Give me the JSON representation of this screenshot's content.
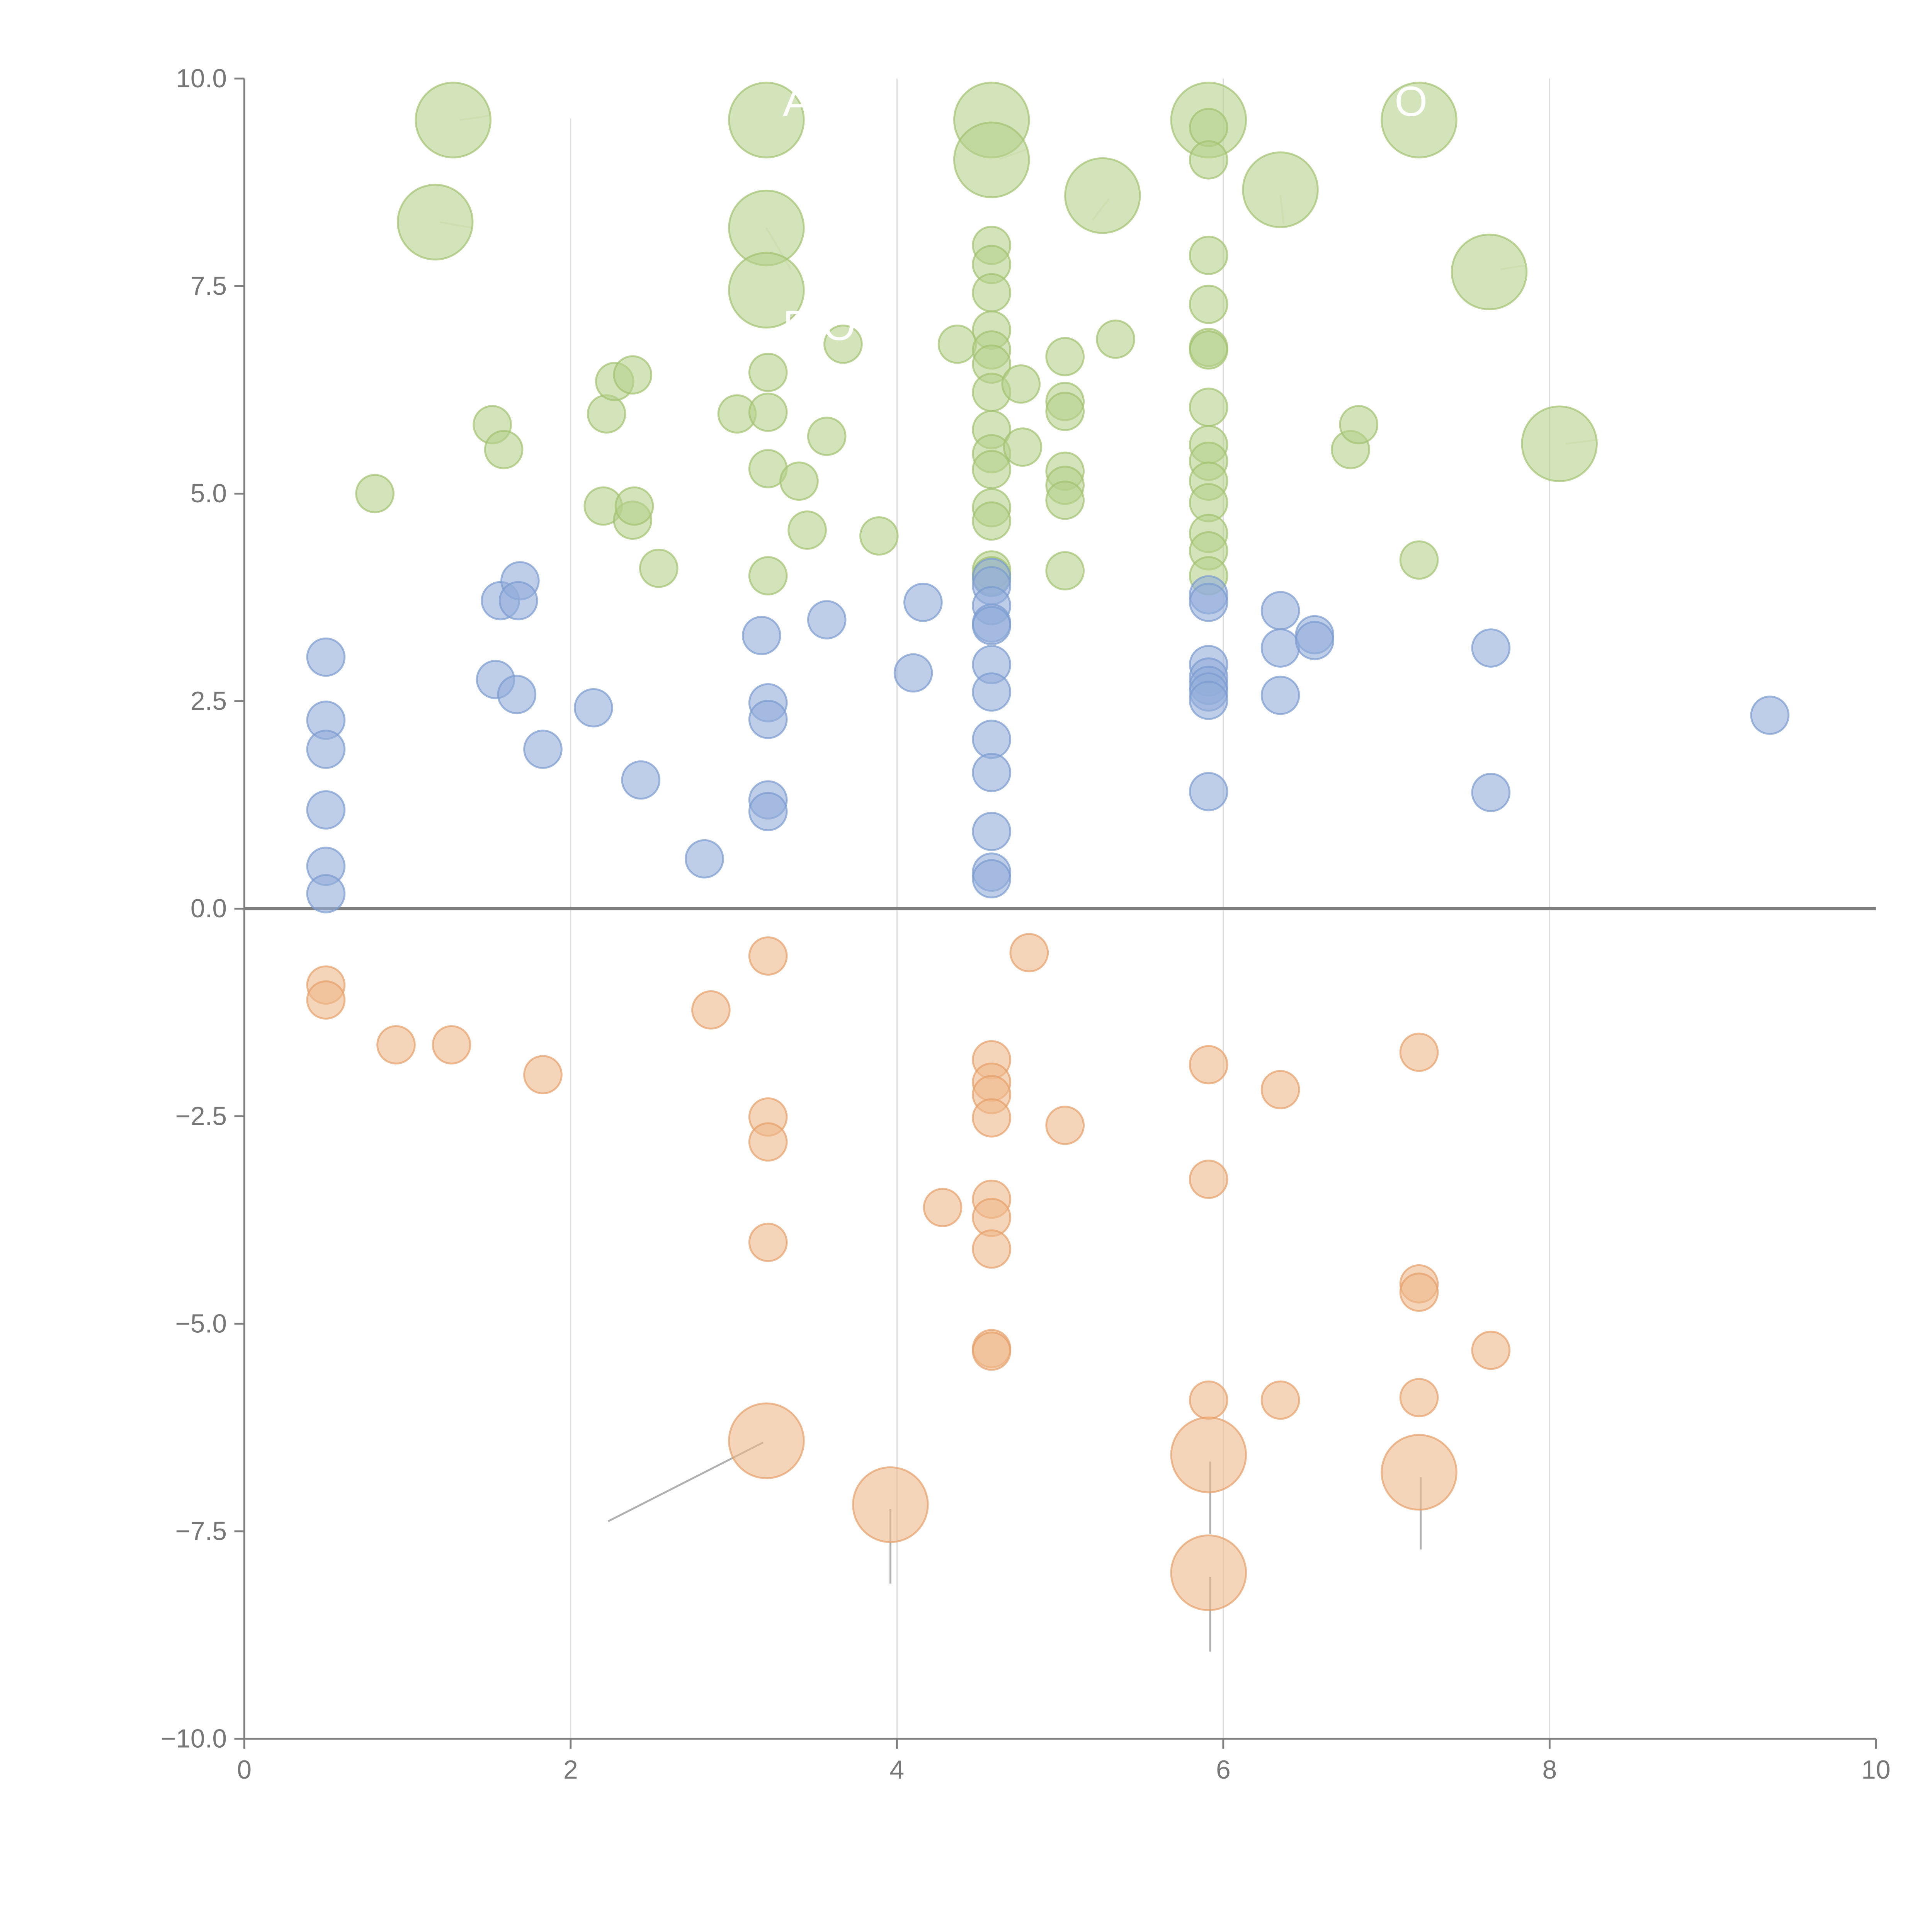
{
  "chart_data": {
    "type": "scatter",
    "title": "",
    "xlabel": "",
    "ylabel": "",
    "xlim": [
      0,
      10
    ],
    "ylim": [
      -10,
      10
    ],
    "x_ticks": [
      "0",
      "2",
      "4",
      "6",
      "8",
      "10"
    ],
    "y_ticks": [
      "−10.0",
      "−7.5",
      "−5.0",
      "−2.5",
      "0.0",
      "2.5",
      "5.0",
      "7.5",
      "10.0"
    ],
    "x_tick_values": [
      0,
      2,
      4,
      6,
      8,
      10
    ],
    "y_tick_values": [
      -10,
      -7.5,
      -5,
      -2.5,
      0,
      2.5,
      5,
      7.5,
      10
    ],
    "grid": "vertical lines at x=2,4,6,8",
    "zero_line": true,
    "legend": "none",
    "point_format": "[x, y, size]",
    "series": [
      {
        "name": "green",
        "color": "#b5d08c",
        "stroke": "#a2c270",
        "points": [
          [
            1.28,
            9.5,
            2
          ],
          [
            1.17,
            8.27,
            2
          ],
          [
            3.2,
            9.5,
            2
          ],
          [
            3.2,
            8.2,
            2
          ],
          [
            3.2,
            7.45,
            2
          ],
          [
            4.58,
            9.5,
            2
          ],
          [
            4.58,
            9.02,
            2
          ],
          [
            5.26,
            8.59,
            2
          ],
          [
            5.91,
            9.5,
            2
          ],
          [
            6.35,
            8.66,
            2
          ],
          [
            7.2,
            9.5,
            2
          ],
          [
            7.63,
            7.67,
            2
          ],
          [
            8.06,
            5.6,
            2
          ],
          [
            0.8,
            5.0,
            1
          ],
          [
            1.52,
            5.83,
            1
          ],
          [
            1.59,
            5.53,
            1
          ],
          [
            2.22,
            5.96,
            1
          ],
          [
            2.27,
            6.35,
            1
          ],
          [
            2.38,
            6.43,
            1
          ],
          [
            2.2,
            4.85,
            1
          ],
          [
            2.38,
            4.68,
            1
          ],
          [
            2.39,
            4.85,
            1
          ],
          [
            2.54,
            4.1,
            1
          ],
          [
            3.02,
            5.96,
            1
          ],
          [
            3.21,
            6.46,
            1
          ],
          [
            3.21,
            5.98,
            1
          ],
          [
            3.21,
            5.3,
            1
          ],
          [
            3.4,
            5.15,
            1
          ],
          [
            3.45,
            4.56,
            1
          ],
          [
            3.21,
            4.01,
            1
          ],
          [
            3.57,
            5.69,
            1
          ],
          [
            3.67,
            6.8,
            1
          ],
          [
            3.89,
            4.49,
            1
          ],
          [
            4.37,
            6.8,
            1
          ],
          [
            4.58,
            7.99,
            1
          ],
          [
            4.58,
            7.76,
            1
          ],
          [
            4.58,
            7.42,
            1
          ],
          [
            4.58,
            6.97,
            1
          ],
          [
            4.58,
            6.73,
            1
          ],
          [
            4.58,
            6.56,
            1
          ],
          [
            4.58,
            6.22,
            1
          ],
          [
            4.58,
            5.77,
            1
          ],
          [
            4.58,
            5.48,
            1
          ],
          [
            4.58,
            5.29,
            1
          ],
          [
            4.58,
            4.83,
            1
          ],
          [
            4.58,
            4.67,
            1
          ],
          [
            4.58,
            4.08,
            1
          ],
          [
            4.58,
            4.01,
            1
          ],
          [
            4.76,
            6.32,
            1
          ],
          [
            4.77,
            5.56,
            1
          ],
          [
            5.03,
            6.65,
            1
          ],
          [
            5.03,
            6.11,
            1
          ],
          [
            5.03,
            5.99,
            1
          ],
          [
            5.03,
            5.27,
            1
          ],
          [
            5.03,
            5.1,
            1
          ],
          [
            5.03,
            4.92,
            1
          ],
          [
            5.03,
            4.07,
            1
          ],
          [
            5.34,
            6.86,
            1
          ],
          [
            5.91,
            9.41,
            1
          ],
          [
            5.91,
            9.02,
            1
          ],
          [
            5.91,
            7.87,
            1
          ],
          [
            5.91,
            7.28,
            1
          ],
          [
            5.91,
            6.76,
            1
          ],
          [
            5.91,
            6.73,
            1
          ],
          [
            5.91,
            6.04,
            1
          ],
          [
            5.91,
            5.59,
            1
          ],
          [
            5.91,
            5.39,
            1
          ],
          [
            5.91,
            5.15,
            1
          ],
          [
            5.91,
            4.89,
            1
          ],
          [
            5.91,
            4.52,
            1
          ],
          [
            5.91,
            4.31,
            1
          ],
          [
            5.91,
            4.01,
            1
          ],
          [
            6.78,
            5.53,
            1
          ],
          [
            6.83,
            5.83,
            1
          ],
          [
            7.2,
            4.2,
            1
          ]
        ]
      },
      {
        "name": "blue",
        "color": "#92aedb",
        "stroke": "#7b9bcf",
        "points": [
          [
            0.5,
            3.03,
            1
          ],
          [
            0.5,
            2.27,
            1
          ],
          [
            0.5,
            1.92,
            1
          ],
          [
            0.5,
            1.19,
            1
          ],
          [
            0.5,
            0.51,
            1
          ],
          [
            0.5,
            0.18,
            1
          ],
          [
            1.54,
            2.76,
            1
          ],
          [
            1.57,
            3.71,
            1
          ],
          [
            1.69,
            3.95,
            1
          ],
          [
            1.68,
            3.71,
            1
          ],
          [
            1.67,
            2.58,
            1
          ],
          [
            1.83,
            1.92,
            1
          ],
          [
            2.14,
            2.42,
            1
          ],
          [
            2.43,
            1.55,
            1
          ],
          [
            2.82,
            0.6,
            1
          ],
          [
            3.17,
            3.29,
            1
          ],
          [
            3.21,
            2.48,
            1
          ],
          [
            3.21,
            2.28,
            1
          ],
          [
            3.21,
            1.31,
            1
          ],
          [
            3.21,
            1.17,
            1
          ],
          [
            3.57,
            3.48,
            1
          ],
          [
            4.1,
            2.84,
            1
          ],
          [
            4.16,
            3.69,
            1
          ],
          [
            4.58,
            3.99,
            1
          ],
          [
            4.58,
            3.89,
            1
          ],
          [
            4.58,
            3.65,
            1
          ],
          [
            4.58,
            3.44,
            1
          ],
          [
            4.58,
            3.41,
            1
          ],
          [
            4.58,
            2.94,
            1
          ],
          [
            4.58,
            2.61,
            1
          ],
          [
            4.58,
            2.04,
            1
          ],
          [
            4.58,
            1.64,
            1
          ],
          [
            4.58,
            0.93,
            1
          ],
          [
            4.58,
            0.44,
            1
          ],
          [
            4.58,
            0.36,
            1
          ],
          [
            5.91,
            3.78,
            1
          ],
          [
            5.91,
            3.69,
            1
          ],
          [
            5.91,
            2.94,
            1
          ],
          [
            5.91,
            2.79,
            1
          ],
          [
            5.91,
            2.69,
            1
          ],
          [
            5.91,
            2.61,
            1
          ],
          [
            5.91,
            2.51,
            1
          ],
          [
            5.91,
            1.41,
            1
          ],
          [
            6.35,
            3.59,
            1
          ],
          [
            6.35,
            3.14,
            1
          ],
          [
            6.35,
            2.57,
            1
          ],
          [
            6.56,
            3.3,
            1
          ],
          [
            6.56,
            3.23,
            1
          ],
          [
            7.64,
            3.14,
            1
          ],
          [
            7.64,
            1.4,
            1
          ],
          [
            9.35,
            2.33,
            1
          ]
        ]
      },
      {
        "name": "orange",
        "color": "#eeb98c",
        "stroke": "#e6a06a",
        "points": [
          [
            0.5,
            -0.92,
            1
          ],
          [
            0.5,
            -1.1,
            1
          ],
          [
            0.93,
            -1.64,
            1
          ],
          [
            1.27,
            -1.64,
            1
          ],
          [
            1.83,
            -2.0,
            1
          ],
          [
            2.86,
            -1.22,
            1
          ],
          [
            3.21,
            -0.57,
            1
          ],
          [
            3.21,
            -2.51,
            1
          ],
          [
            3.21,
            -2.81,
            1
          ],
          [
            3.21,
            -4.02,
            1
          ],
          [
            4.28,
            -3.6,
            1
          ],
          [
            4.58,
            -1.82,
            1
          ],
          [
            4.58,
            -2.09,
            1
          ],
          [
            4.58,
            -2.24,
            1
          ],
          [
            4.58,
            -2.52,
            1
          ],
          [
            4.58,
            -3.5,
            1
          ],
          [
            4.58,
            -3.72,
            1
          ],
          [
            4.58,
            -4.1,
            1
          ],
          [
            4.58,
            -5.3,
            1
          ],
          [
            4.58,
            -5.33,
            1
          ],
          [
            4.81,
            -0.53,
            1
          ],
          [
            5.03,
            -2.61,
            1
          ],
          [
            5.91,
            -1.88,
            1
          ],
          [
            5.91,
            -3.26,
            1
          ],
          [
            5.91,
            -5.92,
            1
          ],
          [
            6.35,
            -2.18,
            1
          ],
          [
            6.35,
            -5.92,
            1
          ],
          [
            7.2,
            -1.73,
            1
          ],
          [
            7.2,
            -4.52,
            1
          ],
          [
            7.2,
            -4.62,
            1
          ],
          [
            7.2,
            -5.89,
            1
          ],
          [
            7.64,
            -5.32,
            1
          ],
          [
            3.2,
            -6.41,
            2
          ],
          [
            3.96,
            -7.18,
            2
          ],
          [
            5.91,
            -6.58,
            2
          ],
          [
            5.91,
            -8.0,
            2
          ],
          [
            7.2,
            -6.79,
            2
          ]
        ]
      }
    ],
    "leader_lines": [
      {
        "from": [
          3.18,
          -6.43
        ],
        "to": [
          2.23,
          -7.38
        ],
        "color": "#b0b0b0"
      },
      {
        "from": [
          3.96,
          -7.23
        ],
        "to": [
          3.96,
          -8.13
        ],
        "color": "#b0b0b0"
      },
      {
        "from": [
          5.92,
          -6.66
        ],
        "to": [
          5.92,
          -7.53
        ],
        "color": "#b0b0b0"
      },
      {
        "from": [
          5.92,
          -8.05
        ],
        "to": [
          5.92,
          -8.95
        ],
        "color": "#b0b0b0"
      },
      {
        "from": [
          7.21,
          -6.85
        ],
        "to": [
          7.21,
          -7.72
        ],
        "color": "#b0b0b0"
      },
      {
        "from": [
          1.32,
          9.5
        ],
        "to": [
          1.5,
          9.55
        ],
        "color": "#f0f5e6"
      },
      {
        "from": [
          1.2,
          8.27
        ],
        "to": [
          1.4,
          8.2
        ],
        "color": "#f0f5e6"
      },
      {
        "from": [
          3.2,
          8.2
        ],
        "to": [
          3.35,
          7.7
        ],
        "color": "#f0f5e6"
      },
      {
        "from": [
          4.63,
          9.03
        ],
        "to": [
          4.8,
          9.15
        ],
        "color": "#f0f5e6"
      },
      {
        "from": [
          5.2,
          8.3
        ],
        "to": [
          5.3,
          8.55
        ],
        "color": "#f0f5e6"
      },
      {
        "from": [
          6.37,
          8.25
        ],
        "to": [
          6.35,
          8.6
        ],
        "color": "#f0f5e6"
      },
      {
        "from": [
          7.7,
          7.7
        ],
        "to": [
          7.85,
          7.75
        ],
        "color": "#f0f5e6"
      },
      {
        "from": [
          8.1,
          5.6
        ],
        "to": [
          8.3,
          5.65
        ],
        "color": "#f0f5e6"
      }
    ],
    "annotations": [
      {
        "text": "A",
        "x": 3.3,
        "y": 9.55
      },
      {
        "text": "O",
        "x": 7.05,
        "y": 9.55
      },
      {
        "text": "E O",
        "x": 3.3,
        "y": 6.85
      }
    ]
  }
}
